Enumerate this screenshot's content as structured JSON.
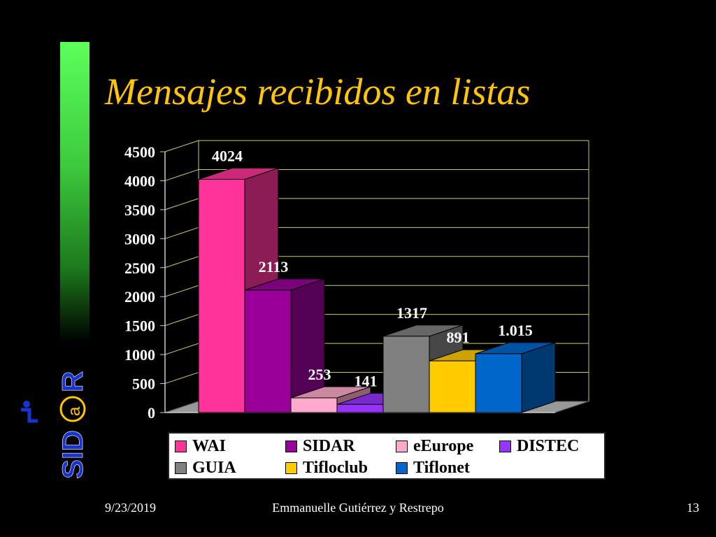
{
  "slide": {
    "title": "Mensajes  recibidos  en listas",
    "footer": {
      "date": "9/23/2019",
      "author": "Emmanuelle Gutiérrez y Restrepo",
      "page": "13"
    },
    "logo": {
      "text": "SID@R"
    }
  },
  "colors": {
    "title": "#ffc40c",
    "background": "#000000"
  },
  "chart_data": {
    "type": "bar",
    "style": "3d",
    "categories": [
      "WAI",
      "SIDAR",
      "eEurope",
      "DISTEC",
      "GUIA",
      "Tifloclub",
      "Tiflonet"
    ],
    "values": [
      4024,
      2113,
      253,
      141,
      1317,
      891,
      1015
    ],
    "data_labels": [
      "4024",
      "2113",
      "253",
      "141",
      "1317",
      "891",
      "1.015"
    ],
    "colors": [
      "#ff3399",
      "#990099",
      "#ffaacc",
      "#9933ff",
      "#808080",
      "#ffcc00",
      "#0066cc"
    ],
    "ylim": [
      0,
      4500
    ],
    "yticks": [
      "0",
      "500",
      "1000",
      "1500",
      "2000",
      "2500",
      "3000",
      "3500",
      "4000",
      "4500"
    ],
    "grid": true,
    "legend_position": "bottom"
  }
}
